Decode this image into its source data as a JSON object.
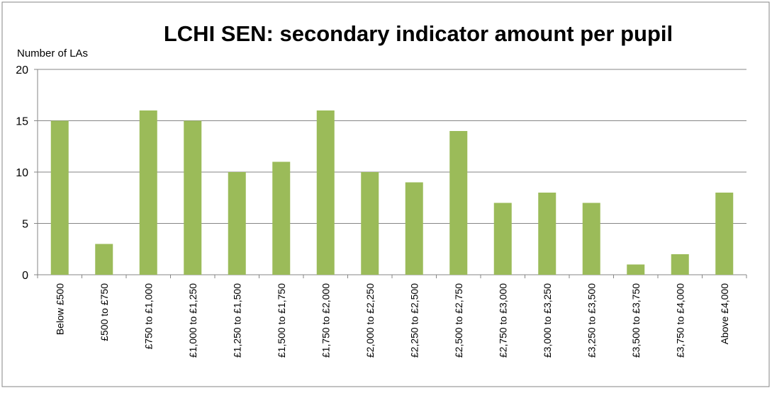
{
  "chart_data": {
    "type": "bar",
    "title": "LCHI SEN: secondary indicator amount per pupil",
    "y_label": "Number of LAs",
    "categories": [
      "Below £500",
      "£500 to £750",
      "£750 to £1,000",
      "£1,000 to £1,250",
      "£1,250 to £1,500",
      "£1,500 to £1,750",
      "£1,750 to £2,000",
      "£2,000 to £2,250",
      "£2,250 to £2,500",
      "£2,500 to £2,750",
      "£2,750 to £3,000",
      "£3,000 to £3,250",
      "£3,250 to £3,500",
      "£3,500 to £3,750",
      "£3,750 to £4,000",
      "Above £4,000"
    ],
    "values": [
      15,
      3,
      16,
      15,
      10,
      11,
      16,
      10,
      9,
      14,
      7,
      8,
      7,
      1,
      2,
      8
    ],
    "color": "#9bbb59",
    "ylim": [
      0,
      20
    ],
    "yticks": [
      0,
      5,
      10,
      15,
      20
    ],
    "grid": true
  }
}
